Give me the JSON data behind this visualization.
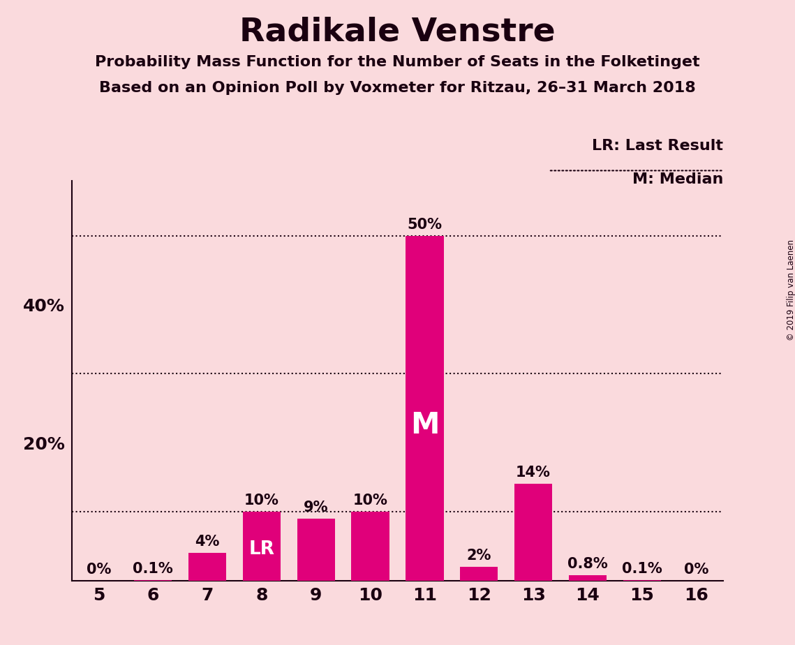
{
  "title": "Radikale Venstre",
  "subtitle1": "Probability Mass Function for the Number of Seats in the Folketinget",
  "subtitle2": "Based on an Opinion Poll by Voxmeter for Ritzau, 26–31 March 2018",
  "seats": [
    5,
    6,
    7,
    8,
    9,
    10,
    11,
    12,
    13,
    14,
    15,
    16
  ],
  "values": [
    0.0,
    0.1,
    4.0,
    10.0,
    9.0,
    10.0,
    50.0,
    2.0,
    14.0,
    0.8,
    0.1,
    0.0
  ],
  "labels": [
    "0%",
    "0.1%",
    "4%",
    "10%",
    "9%",
    "10%",
    "50%",
    "2%",
    "14%",
    "0.8%",
    "0.1%",
    "0%"
  ],
  "bar_color": "#E0007A",
  "background_color": "#FADADD",
  "text_color": "#1a0010",
  "lr_seat": 8,
  "median_seat": 11,
  "dotted_line_values": [
    10.0,
    30.0,
    50.0
  ],
  "ylim": [
    0,
    58
  ],
  "yticks": [
    20,
    40
  ],
  "ytick_labels": [
    "20%",
    "40%"
  ],
  "copyright_text": "© 2019 Filip van Laenen",
  "lr_label": "LR: Last Result",
  "median_label": "M: Median",
  "lr_marker": "LR",
  "median_marker": "M",
  "bar_width": 0.7
}
